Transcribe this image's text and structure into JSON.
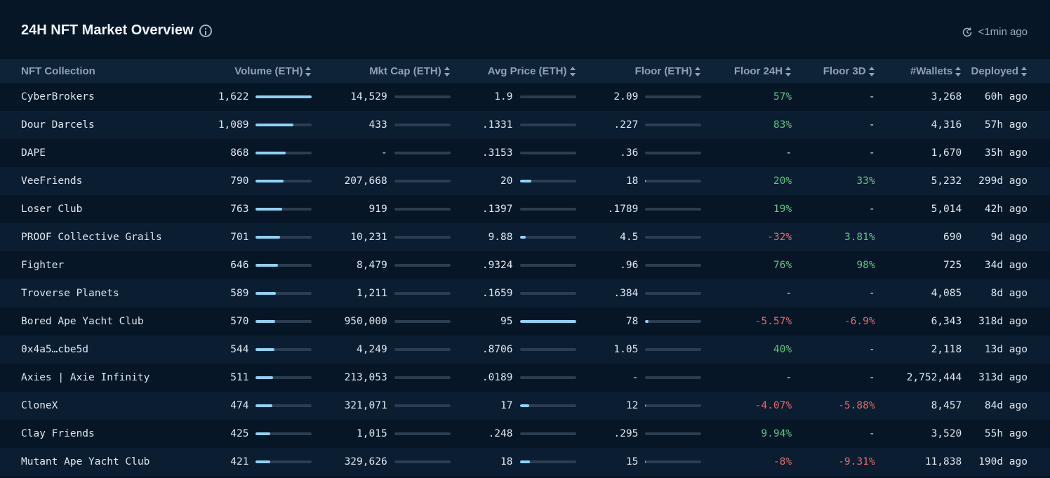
{
  "header": {
    "title": "24H NFT Market Overview",
    "refresh": "<1min ago"
  },
  "columns": [
    "NFT Collection",
    "Volume (ETH)",
    "Mkt Cap (ETH)",
    "Avg Price (ETH)",
    "Floor (ETH)",
    "Floor 24H",
    "Floor 3D",
    "#Wallets",
    "Deployed"
  ],
  "rows": [
    {
      "name": "CyberBrokers",
      "volume": "1,622",
      "volume_pct": 100,
      "mktcap": "14,529",
      "mktcap_pct": 0,
      "avg": "1.9",
      "avg_pct": 0,
      "floor": "2.09",
      "floor_pct": 0,
      "f24": "57%",
      "f24_t": "pos",
      "f3d": "-",
      "f3d_t": "neu",
      "wallets": "3,268",
      "deployed": "60h ago"
    },
    {
      "name": "Dour Darcels",
      "volume": "1,089",
      "volume_pct": 67,
      "mktcap": "433",
      "mktcap_pct": 0,
      "avg": ".1331",
      "avg_pct": 0,
      "floor": ".227",
      "floor_pct": 0,
      "f24": "83%",
      "f24_t": "pos",
      "f3d": "-",
      "f3d_t": "neu",
      "wallets": "4,316",
      "deployed": "57h ago"
    },
    {
      "name": "DAPE",
      "volume": "868",
      "volume_pct": 53,
      "mktcap": "-",
      "mktcap_pct": 0,
      "avg": ".3153",
      "avg_pct": 0,
      "floor": ".36",
      "floor_pct": 0,
      "f24": "-",
      "f24_t": "neu",
      "f3d": "-",
      "f3d_t": "neu",
      "wallets": "1,670",
      "deployed": "35h ago"
    },
    {
      "name": "VeeFriends",
      "volume": "790",
      "volume_pct": 49,
      "mktcap": "207,668",
      "mktcap_pct": 0,
      "avg": "20",
      "avg_pct": 21,
      "floor": "18",
      "floor_pct": 1,
      "f24": "20%",
      "f24_t": "pos",
      "f3d": "33%",
      "f3d_t": "pos",
      "wallets": "5,232",
      "deployed": "299d ago"
    },
    {
      "name": "Loser Club",
      "volume": "763",
      "volume_pct": 47,
      "mktcap": "919",
      "mktcap_pct": 0,
      "avg": ".1397",
      "avg_pct": 0,
      "floor": ".1789",
      "floor_pct": 0,
      "f24": "19%",
      "f24_t": "pos",
      "f3d": "-",
      "f3d_t": "neu",
      "wallets": "5,014",
      "deployed": "42h ago"
    },
    {
      "name": "PROOF Collective Grails",
      "volume": "701",
      "volume_pct": 43,
      "mktcap": "10,231",
      "mktcap_pct": 0,
      "avg": "9.88",
      "avg_pct": 10,
      "floor": "4.5",
      "floor_pct": 0,
      "f24": "-32%",
      "f24_t": "neg",
      "f3d": "3.81%",
      "f3d_t": "pos",
      "wallets": "690",
      "deployed": "9d ago"
    },
    {
      "name": "Fighter",
      "volume": "646",
      "volume_pct": 40,
      "mktcap": "8,479",
      "mktcap_pct": 0,
      "avg": ".9324",
      "avg_pct": 0,
      "floor": ".96",
      "floor_pct": 0,
      "f24": "76%",
      "f24_t": "pos",
      "f3d": "98%",
      "f3d_t": "pos",
      "wallets": "725",
      "deployed": "34d ago"
    },
    {
      "name": "Troverse Planets",
      "volume": "589",
      "volume_pct": 36,
      "mktcap": "1,211",
      "mktcap_pct": 0,
      "avg": ".1659",
      "avg_pct": 0,
      "floor": ".384",
      "floor_pct": 0,
      "f24": "-",
      "f24_t": "neu",
      "f3d": "-",
      "f3d_t": "neu",
      "wallets": "4,085",
      "deployed": "8d ago"
    },
    {
      "name": "Bored Ape Yacht Club",
      "volume": "570",
      "volume_pct": 35,
      "mktcap": "950,000",
      "mktcap_pct": 0,
      "avg": "95",
      "avg_pct": 100,
      "floor": "78",
      "floor_pct": 6,
      "f24": "-5.57%",
      "f24_t": "neg",
      "f3d": "-6.9%",
      "f3d_t": "neg",
      "wallets": "6,343",
      "deployed": "318d ago"
    },
    {
      "name": "0x4a5…cbe5d",
      "volume": "544",
      "volume_pct": 33,
      "mktcap": "4,249",
      "mktcap_pct": 0,
      "avg": ".8706",
      "avg_pct": 0,
      "floor": "1.05",
      "floor_pct": 0,
      "f24": "40%",
      "f24_t": "pos",
      "f3d": "-",
      "f3d_t": "neu",
      "wallets": "2,118",
      "deployed": "13d ago"
    },
    {
      "name": "Axies | Axie Infinity",
      "volume": "511",
      "volume_pct": 31,
      "mktcap": "213,053",
      "mktcap_pct": 0,
      "avg": ".0189",
      "avg_pct": 0,
      "floor": "-",
      "floor_pct": 0,
      "f24": "-",
      "f24_t": "neu",
      "f3d": "-",
      "f3d_t": "neu",
      "wallets": "2,752,444",
      "deployed": "313d ago"
    },
    {
      "name": "CloneX",
      "volume": "474",
      "volume_pct": 29,
      "mktcap": "321,071",
      "mktcap_pct": 0,
      "avg": "17",
      "avg_pct": 17,
      "floor": "12",
      "floor_pct": 1,
      "f24": "-4.07%",
      "f24_t": "neg",
      "f3d": "-5.88%",
      "f3d_t": "neg",
      "wallets": "8,457",
      "deployed": "84d ago"
    },
    {
      "name": "Clay Friends",
      "volume": "425",
      "volume_pct": 26,
      "mktcap": "1,015",
      "mktcap_pct": 0,
      "avg": ".248",
      "avg_pct": 0,
      "floor": ".295",
      "floor_pct": 0,
      "f24": "9.94%",
      "f24_t": "pos",
      "f3d": "-",
      "f3d_t": "neu",
      "wallets": "3,520",
      "deployed": "55h ago"
    },
    {
      "name": "Mutant Ape Yacht Club",
      "volume": "421",
      "volume_pct": 26,
      "mktcap": "329,626",
      "mktcap_pct": 0,
      "avg": "18",
      "avg_pct": 18,
      "floor": "15",
      "floor_pct": 1,
      "f24": "-8%",
      "f24_t": "neg",
      "f3d": "-9.31%",
      "f3d_t": "neg",
      "wallets": "11,838",
      "deployed": "190d ago"
    }
  ]
}
